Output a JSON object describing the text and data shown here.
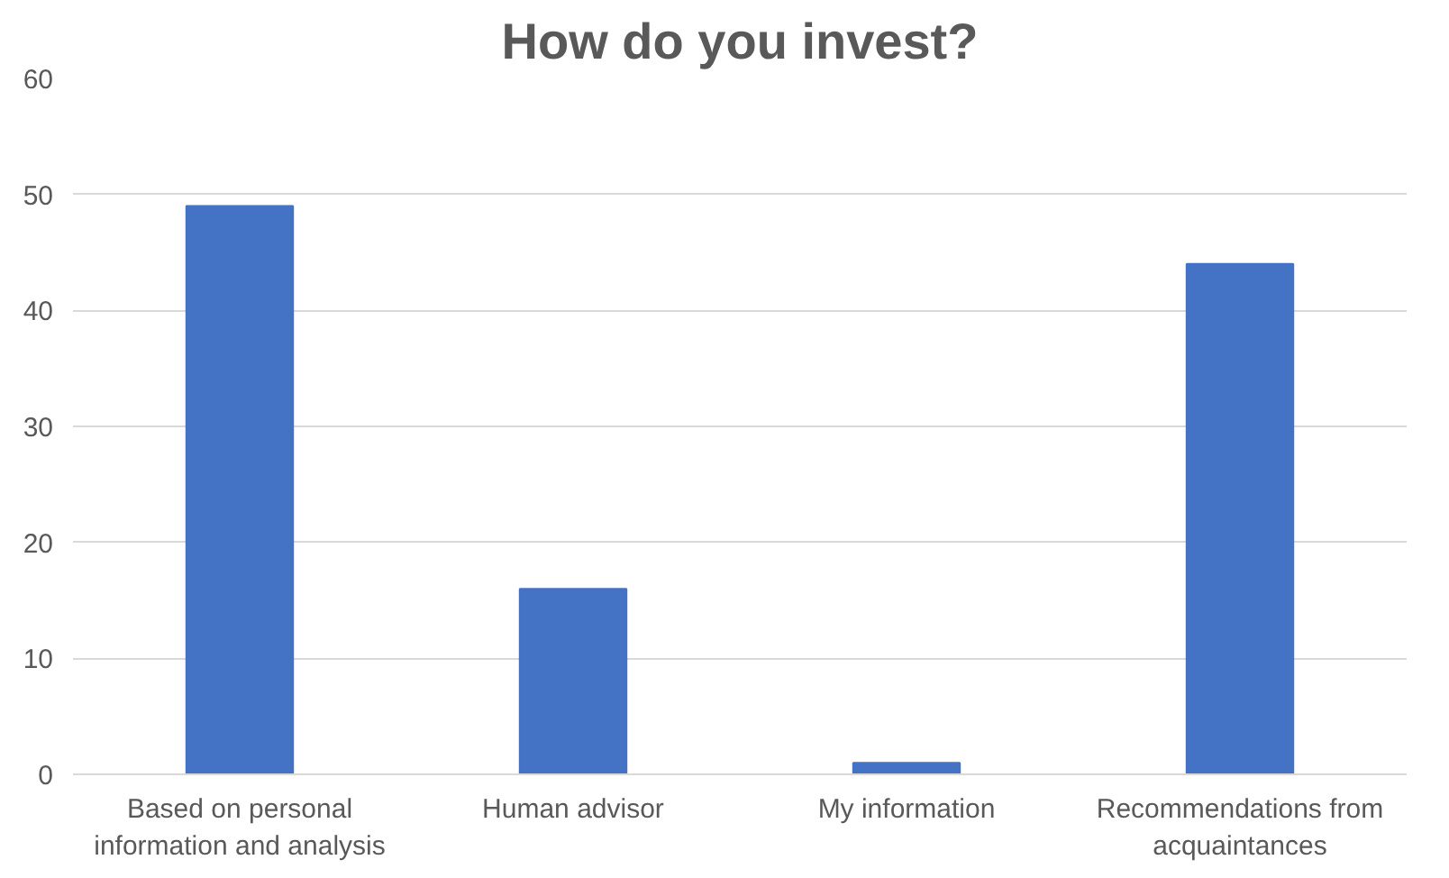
{
  "chart_data": {
    "type": "bar",
    "title": "How do you invest?",
    "categories": [
      "Based on personal information and analysis",
      "Human advisor",
      "My information",
      "Recommendations from acquaintances"
    ],
    "values": [
      49,
      16,
      1,
      44
    ],
    "color": "#4472c4",
    "ylim": [
      0,
      60
    ],
    "yticks": [
      0,
      10,
      20,
      30,
      40,
      50,
      60
    ],
    "grid": "y"
  }
}
